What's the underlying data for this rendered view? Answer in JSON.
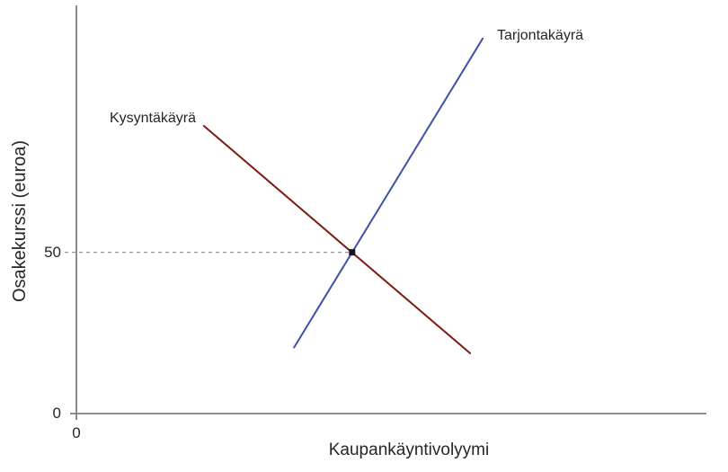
{
  "chart_data": {
    "type": "line",
    "title": "",
    "xlabel": "Kaupankäyntivolyymi",
    "ylabel": "Osakekurssi (euroa)",
    "xlim": [
      0,
      100
    ],
    "ylim": [
      0,
      126
    ],
    "grid": false,
    "legend_position": "inline-labels",
    "axis_color": "#7f7f7f",
    "text_color": "#262626",
    "x_ticks": [
      {
        "value": 0,
        "label": "0"
      }
    ],
    "y_ticks": [
      {
        "value": 0,
        "label": "0"
      },
      {
        "value": 50,
        "label": "50"
      }
    ],
    "series": [
      {
        "name": "Kysyntäkäyrä",
        "role": "demand-curve",
        "color": "#7d1a12",
        "x": [
          20.2,
          62.4
        ],
        "y": [
          89.2,
          18.7
        ]
      },
      {
        "name": "Tarjontakäyrä",
        "role": "supply-curve",
        "color": "#3f51a5",
        "x": [
          34.5,
          64.4
        ],
        "y": [
          20.5,
          116.3
        ]
      }
    ],
    "equilibrium": {
      "x": 43.7,
      "y": 50,
      "price_label": "50",
      "marker_color": "#16161f",
      "dashed_guide_color": "#9a9a9a"
    }
  }
}
